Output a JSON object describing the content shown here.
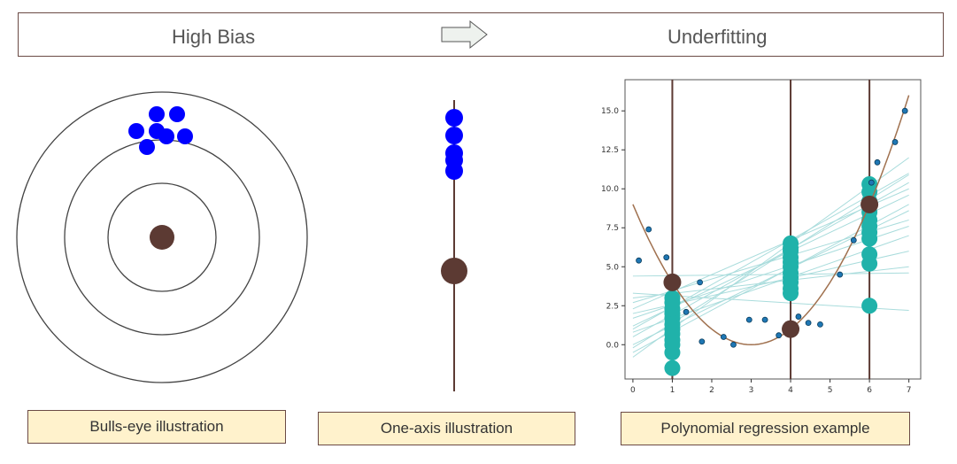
{
  "header": {
    "left_label": "High Bias",
    "right_label": "Underfitting",
    "arrow_icon": "right-arrow-icon"
  },
  "captions": {
    "bullseye": "Bulls-eye illustration",
    "one_axis": "One-axis illustration",
    "poly": "Polynomial regression example"
  },
  "colors": {
    "prediction": "#0000ff",
    "target": "#5c3a33",
    "teal": "#20b2aa",
    "fit_line": "#a9dcdc",
    "curve": "#a0714f",
    "caption_bg": "#fff2cc"
  },
  "chart_data": {
    "type": "scatter",
    "title": "",
    "xlabel": "",
    "ylabel": "",
    "xlim": [
      -0.2,
      7.3
    ],
    "ylim": [
      -2.2,
      17
    ],
    "xticks": [
      "0",
      "1",
      "2",
      "3",
      "4",
      "5",
      "6",
      "7"
    ],
    "yticks": [
      "0.0",
      "2.5",
      "5.0",
      "7.5",
      "10.0",
      "12.5",
      "15.0"
    ],
    "grid": false,
    "legend": "none",
    "vertical_lines_x": [
      1,
      4,
      6
    ],
    "true_curve": {
      "type": "quadratic",
      "vertex_x": 3,
      "vertex_y": 0,
      "a": 1
    },
    "target_points": [
      {
        "x": 1,
        "y": 4
      },
      {
        "x": 4,
        "y": 1
      },
      {
        "x": 6,
        "y": 9
      }
    ],
    "data_points": [
      {
        "x": 0.15,
        "y": 5.4
      },
      {
        "x": 0.4,
        "y": 7.4
      },
      {
        "x": 0.85,
        "y": 5.6
      },
      {
        "x": 1.35,
        "y": 2.1
      },
      {
        "x": 1.7,
        "y": 4.0
      },
      {
        "x": 1.75,
        "y": 0.2
      },
      {
        "x": 2.3,
        "y": 0.5
      },
      {
        "x": 2.55,
        "y": 0.0
      },
      {
        "x": 2.95,
        "y": 1.6
      },
      {
        "x": 3.35,
        "y": 1.6
      },
      {
        "x": 3.7,
        "y": 0.6
      },
      {
        "x": 4.2,
        "y": 1.8
      },
      {
        "x": 4.45,
        "y": 1.4
      },
      {
        "x": 4.75,
        "y": 1.3
      },
      {
        "x": 5.25,
        "y": 4.5
      },
      {
        "x": 5.6,
        "y": 6.7
      },
      {
        "x": 6.05,
        "y": 10.4
      },
      {
        "x": 6.2,
        "y": 11.7
      },
      {
        "x": 6.65,
        "y": 13.0
      },
      {
        "x": 6.9,
        "y": 15.0
      }
    ],
    "linear_predictions": {
      "x1": [
        -1.5,
        -0.5,
        0.0,
        0.3,
        0.7,
        1.0,
        1.3,
        1.7,
        2.0,
        2.3,
        2.7,
        3.0
      ],
      "x4": [
        3.3,
        3.6,
        4.0,
        4.3,
        4.6,
        5.0,
        5.3,
        5.6,
        6.0,
        6.2,
        6.5
      ],
      "x6": [
        2.5,
        5.2,
        5.8,
        6.8,
        7.2,
        7.6,
        8.0,
        8.5,
        9.2,
        9.8,
        10.3
      ]
    },
    "fit_lines": [
      {
        "y0": 4.4,
        "y7": 4.6
      },
      {
        "y0": 3.3,
        "y7": 2.2
      },
      {
        "y0": 2.7,
        "y7": 8.0
      },
      {
        "y0": 1.7,
        "y7": 7.6
      },
      {
        "y0": 1.2,
        "y7": 9.6
      },
      {
        "y0": 0.5,
        "y7": 10.4
      },
      {
        "y0": -0.2,
        "y7": 10.9
      },
      {
        "y0": -0.8,
        "y7": 12.0
      },
      {
        "y0": 0.0,
        "y7": 8.6
      },
      {
        "y0": 2.0,
        "y7": 6.0
      },
      {
        "y0": 3.0,
        "y7": 5.0
      },
      {
        "y0": 1.0,
        "y7": 11.0
      },
      {
        "y0": -0.5,
        "y7": 9.0
      },
      {
        "y0": 2.3,
        "y7": 10.0
      },
      {
        "y0": 0.8,
        "y7": 7.0
      }
    ]
  }
}
